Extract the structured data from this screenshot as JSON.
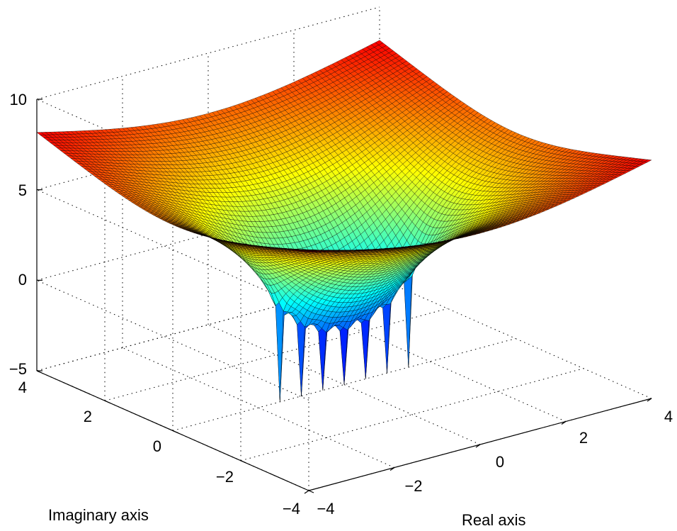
{
  "chart_data": {
    "type": "surface",
    "title": "",
    "xlabel": "Real axis",
    "ylabel": "Imaginary axis",
    "zlabel": "",
    "xlim": [
      -4,
      4
    ],
    "ylim": [
      -4,
      4
    ],
    "zlim": [
      -5,
      10
    ],
    "x_ticks": [
      "−4",
      "−2",
      "0",
      "2",
      "4"
    ],
    "y_ticks": [
      "−4",
      "−2",
      "0",
      "2",
      "4"
    ],
    "z_ticks": [
      "−5",
      "0",
      "5",
      "10"
    ],
    "grid": true,
    "colormap": "jet",
    "surface_function": "log|p(x+iy)|, polynomial with 7 roots on real axis between -1.5 and 1.5",
    "roots_real": [
      -1.5,
      -1.0,
      -0.5,
      0.0,
      0.5,
      1.0,
      1.5
    ],
    "grid_resolution": 81,
    "corner_values": {
      "x-4_y-4": 8.5,
      "x4_y4": 10.0,
      "x4_y-4": 7.0,
      "x-4_y4": 8.5
    },
    "minimum_z": -5
  }
}
